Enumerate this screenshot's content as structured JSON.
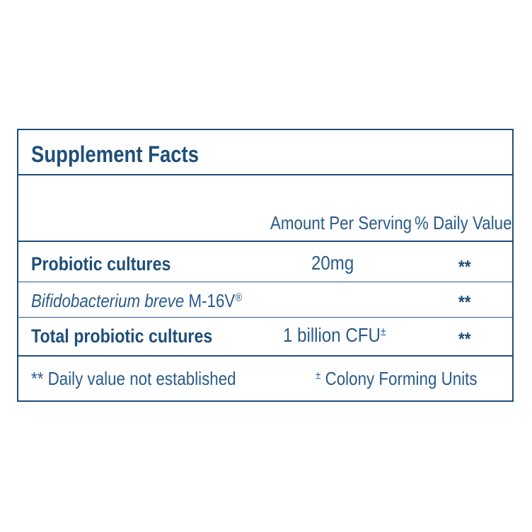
{
  "title": "Supplement Facts",
  "header": {
    "amount_per_serving": "Amount Per Serving",
    "daily_value": "% Daily Value"
  },
  "rows": [
    {
      "label": "Probiotic cultures",
      "amount": "20mg",
      "dv": "**"
    },
    {
      "label_italic": "Bifidobacterium breve",
      "label_rest": " M-16V",
      "label_mark": "®",
      "amount": "",
      "dv": "**"
    },
    {
      "label": "Total probiotic cultures",
      "amount": "1 billion CFU",
      "amount_mark": "±",
      "dv": "**"
    }
  ],
  "footnotes": {
    "left": "** Daily value not established",
    "right_mark": "±",
    "right": " Colony Forming Units"
  },
  "colors": {
    "primary": "#1f4e79",
    "text": "#2a5b8a"
  }
}
